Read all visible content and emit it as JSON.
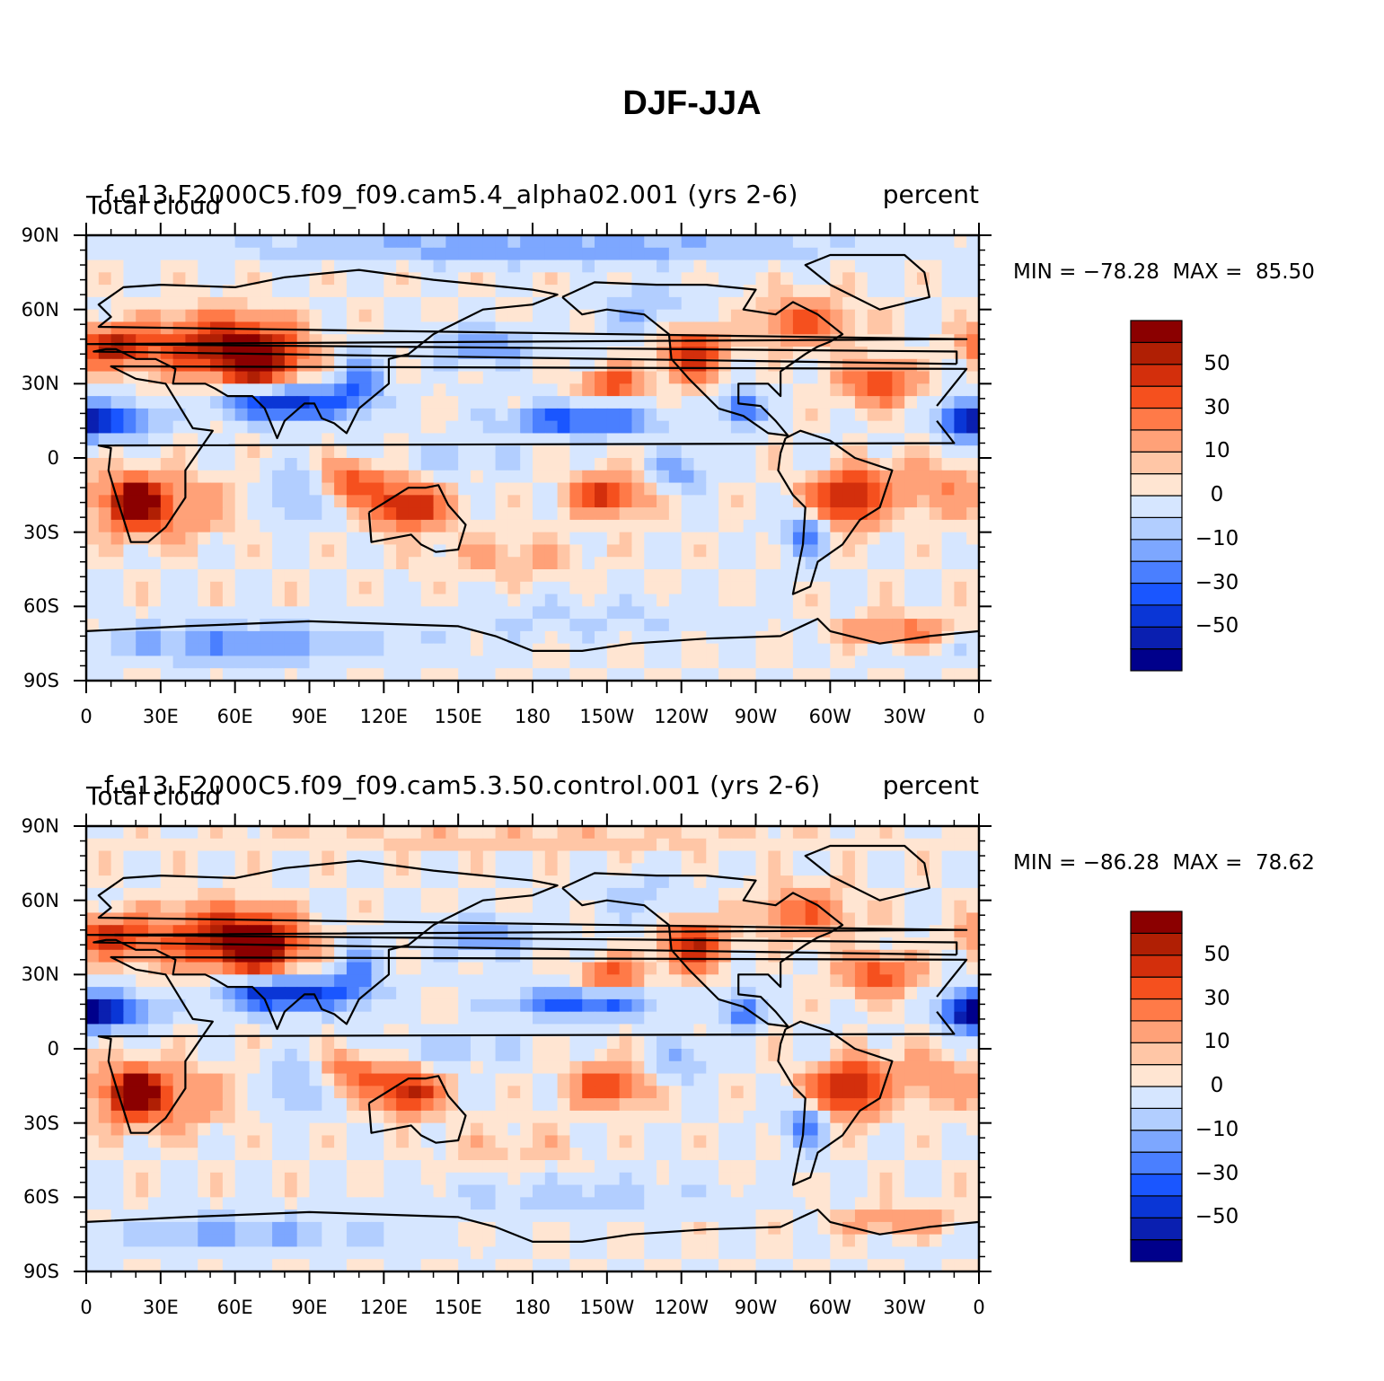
{
  "figure_title": "DJF-JJA",
  "colorbar": {
    "colors": [
      "#00008b",
      "#0a1fb0",
      "#0a36d6",
      "#1a56ff",
      "#4a7fff",
      "#7da7ff",
      "#b2ceff",
      "#d6e6ff",
      "#ffe5d2",
      "#ffc6a6",
      "#ffa178",
      "#ff7a48",
      "#f5501e",
      "#d32f0c",
      "#b01f04",
      "#8b0000"
    ],
    "labels": [
      "50",
      "30",
      "10",
      "0",
      "−10",
      "−30",
      "−50"
    ]
  },
  "chart_data": [
    {
      "type": "heatmap",
      "case_title": "f.e13.F2000C5.f09_f09.cam5.4_alpha02.001 (yrs 2-6)",
      "variable": "Total cloud",
      "units": "percent",
      "stats_text": "MIN = −78.28  MAX =  85.50",
      "min": -78.28,
      "max": 85.5,
      "lat_ticks": [
        "90N",
        "60N",
        "30N",
        "0",
        "30S",
        "60S",
        "90S"
      ],
      "lon_ticks": [
        "0",
        "30E",
        "60E",
        "90E",
        "120E",
        "150E",
        "180",
        "150W",
        "120W",
        "90W",
        "60W",
        "30W",
        "0"
      ],
      "field_blobs": [
        [
          20,
          -18,
          10,
          9,
          72
        ],
        [
          55,
          45,
          28,
          12,
          55
        ],
        [
          10,
          45,
          14,
          8,
          52
        ],
        [
          70,
          38,
          14,
          10,
          50
        ],
        [
          130,
          -20,
          14,
          8,
          58
        ],
        [
          108,
          -10,
          14,
          8,
          35
        ],
        [
          210,
          -15,
          14,
          8,
          45
        ],
        [
          212,
          30,
          12,
          6,
          38
        ],
        [
          245,
          42,
          12,
          10,
          48
        ],
        [
          305,
          -15,
          14,
          12,
          62
        ],
        [
          320,
          30,
          14,
          8,
          40
        ],
        [
          290,
          55,
          18,
          10,
          30
        ],
        [
          30,
          -20,
          25,
          12,
          25
        ],
        [
          340,
          -12,
          20,
          10,
          20
        ],
        [
          170,
          -40,
          30,
          8,
          12
        ],
        [
          330,
          -70,
          25,
          6,
          25
        ],
        [
          80,
          22,
          25,
          7,
          -60
        ],
        [
          10,
          15,
          18,
          7,
          -50
        ],
        [
          200,
          15,
          30,
          6,
          -50
        ],
        [
          265,
          20,
          8,
          8,
          -45
        ],
        [
          110,
          30,
          10,
          12,
          -35
        ],
        [
          290,
          -30,
          10,
          10,
          -35
        ],
        [
          200,
          -65,
          60,
          8,
          -12
        ],
        [
          60,
          -75,
          60,
          8,
          -30
        ],
        [
          300,
          -5,
          10,
          10,
          -20
        ],
        [
          240,
          -5,
          12,
          8,
          -25
        ],
        [
          150,
          0,
          25,
          5,
          -15
        ],
        [
          225,
          60,
          20,
          10,
          -20
        ],
        [
          85,
          -15,
          12,
          12,
          -25
        ],
        [
          180,
          85,
          120,
          6,
          -28
        ],
        [
          160,
          45,
          20,
          8,
          -30
        ],
        [
          355,
          15,
          10,
          8,
          -50
        ]
      ]
    },
    {
      "type": "heatmap",
      "case_title": "f.e13.F2000C5.f09_f09.cam5.3.50.control.001 (yrs 2-6)",
      "variable": "Total cloud",
      "units": "percent",
      "stats_text": "MIN = −86.28  MAX =  78.62",
      "min": -86.28,
      "max": 78.62,
      "lat_ticks": [
        "90N",
        "60N",
        "30N",
        "0",
        "30S",
        "60S",
        "90S"
      ],
      "lon_ticks": [
        "0",
        "30E",
        "60E",
        "90E",
        "120E",
        "150E",
        "180",
        "150W",
        "120W",
        "90W",
        "60W",
        "30W",
        "0"
      ],
      "field_blobs": [
        [
          20,
          -18,
          10,
          9,
          70
        ],
        [
          55,
          45,
          28,
          12,
          50
        ],
        [
          10,
          45,
          14,
          8,
          45
        ],
        [
          70,
          40,
          14,
          10,
          55
        ],
        [
          130,
          -18,
          12,
          8,
          55
        ],
        [
          108,
          -10,
          14,
          8,
          30
        ],
        [
          210,
          -15,
          14,
          8,
          40
        ],
        [
          212,
          30,
          12,
          6,
          35
        ],
        [
          245,
          42,
          12,
          10,
          50
        ],
        [
          305,
          -15,
          14,
          12,
          62
        ],
        [
          320,
          30,
          14,
          8,
          38
        ],
        [
          290,
          55,
          18,
          10,
          28
        ],
        [
          30,
          -20,
          25,
          12,
          25
        ],
        [
          340,
          -12,
          20,
          10,
          18
        ],
        [
          170,
          -40,
          30,
          8,
          8
        ],
        [
          330,
          -70,
          25,
          6,
          20
        ],
        [
          80,
          22,
          25,
          7,
          -65
        ],
        [
          10,
          15,
          18,
          7,
          -55
        ],
        [
          200,
          18,
          30,
          6,
          -45
        ],
        [
          265,
          15,
          8,
          8,
          -40
        ],
        [
          110,
          30,
          10,
          12,
          -30
        ],
        [
          290,
          -30,
          10,
          10,
          -35
        ],
        [
          200,
          -60,
          60,
          8,
          -15
        ],
        [
          60,
          -75,
          60,
          8,
          -22
        ],
        [
          300,
          -5,
          10,
          10,
          -20
        ],
        [
          240,
          -5,
          12,
          8,
          -22
        ],
        [
          150,
          0,
          25,
          5,
          -18
        ],
        [
          225,
          60,
          20,
          10,
          -15
        ],
        [
          85,
          -15,
          12,
          12,
          -25
        ],
        [
          180,
          85,
          120,
          6,
          8
        ],
        [
          160,
          45,
          20,
          8,
          -28
        ],
        [
          355,
          15,
          10,
          8,
          -55
        ]
      ]
    }
  ]
}
